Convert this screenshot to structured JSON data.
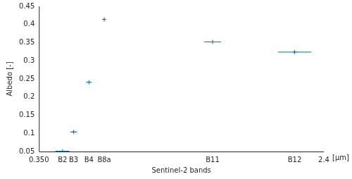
{
  "chart_data": {
    "type": "scatter",
    "x_label": "Sentinel-2 bands",
    "y_label": "Albedo [-]",
    "annotation": "[μm]",
    "x": [
      0.52,
      0.6,
      0.71,
      0.82,
      1.6,
      2.19
    ],
    "values": [
      0.051,
      0.104,
      0.241,
      0.414,
      0.352,
      0.324
    ],
    "xerr": [
      0.05,
      0.025,
      0.02,
      0.01,
      0.06,
      0.12
    ],
    "color": "#0072bd",
    "marker": "+",
    "xlim": [
      0.35,
      2.4
    ],
    "xticks": [
      {
        "value": 0.35,
        "label": "0.350"
      },
      {
        "value": 0.52,
        "label": "B2"
      },
      {
        "value": 0.6,
        "label": "B3"
      },
      {
        "value": 0.71,
        "label": "B4"
      },
      {
        "value": 0.82,
        "label": "B8a"
      },
      {
        "value": 1.6,
        "label": "B11"
      },
      {
        "value": 2.19,
        "label": "B12"
      },
      2.4
    ],
    "ylim": [
      0.05,
      0.45
    ],
    "yticks": [
      0.05,
      0.1,
      0.15,
      0.2,
      0.25,
      0.3,
      0.35,
      0.4,
      0.45
    ],
    "grid": false
  }
}
